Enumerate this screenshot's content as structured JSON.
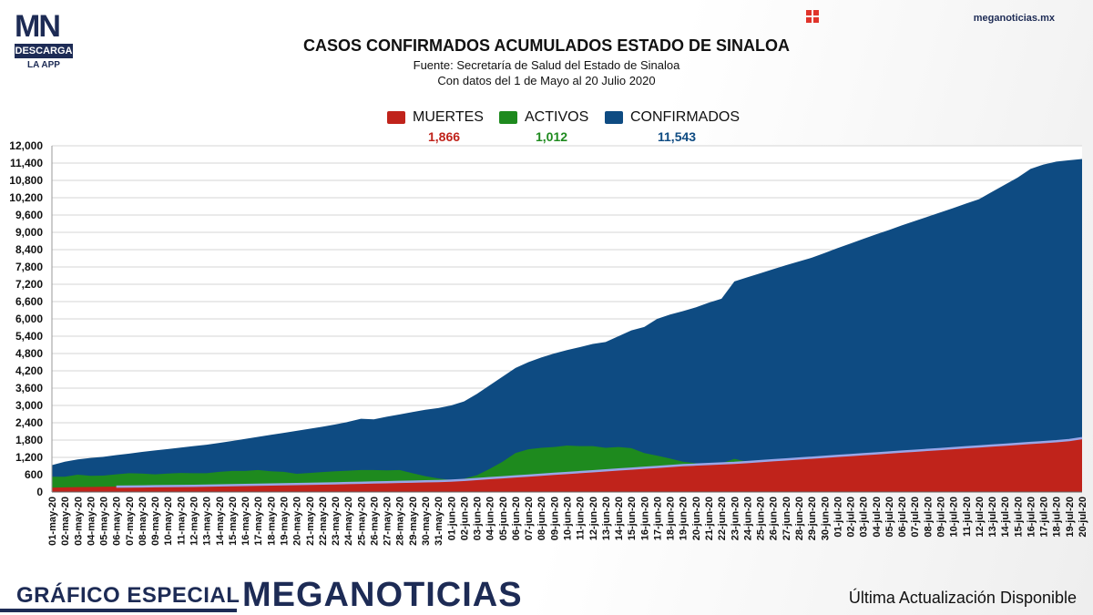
{
  "header": {
    "logo_text": "MN",
    "logo_bar": "DESCARGA",
    "logo_sub": "LA APP",
    "site": "meganoticias.mx",
    "title": "CASOS CONFIRMADOS ACUMULADOS ESTADO DE SINALOA",
    "source": "Fuente: Secretaría de Salud del Estado de Sinaloa",
    "range": "Con datos del 1 de Mayo al 20 Julio 2020"
  },
  "legend": {
    "muertes": {
      "label": "MUERTES",
      "value": "1,866",
      "color": "#c0231b"
    },
    "activos": {
      "label": "ACTIVOS",
      "value": "1,012",
      "color": "#1e8a1e"
    },
    "confirmados": {
      "label": "CONFIRMADOS",
      "value": "11,543",
      "color": "#0e4b82"
    }
  },
  "footer": {
    "left": "GRÁFICO ESPECIAL",
    "brand": "MEGANOTICIAS",
    "right": "Última Actualización Disponible"
  },
  "chart_data": {
    "type": "area",
    "title": "CASOS CONFIRMADOS ACUMULADOS ESTADO DE SINALOA",
    "ylim": [
      0,
      12000
    ],
    "yticks": [
      "0",
      "600",
      "1,200",
      "1,800",
      "2,400",
      "3,000",
      "3,600",
      "4,200",
      "4,800",
      "5,400",
      "6,000",
      "6,600",
      "7,200",
      "7,800",
      "8,400",
      "9,000",
      "9,600",
      "10,200",
      "10,800",
      "11,400",
      "12,000"
    ],
    "grid": true,
    "legend_position": "top-center",
    "x": [
      "01-may-20",
      "02-may-20",
      "03-may-20",
      "04-may-20",
      "05-may-20",
      "06-may-20",
      "07-may-20",
      "08-may-20",
      "09-may-20",
      "10-may-20",
      "11-may-20",
      "12-may-20",
      "13-may-20",
      "14-may-20",
      "15-may-20",
      "16-may-20",
      "17-may-20",
      "18-may-20",
      "19-may-20",
      "20-may-20",
      "21-may-20",
      "22-may-20",
      "23-may-20",
      "24-may-20",
      "25-may-20",
      "26-may-20",
      "27-may-20",
      "28-may-20",
      "29-may-20",
      "30-may-20",
      "31-may-20",
      "01-jun-20",
      "02-jun-20",
      "03-jun-20",
      "04-jun-20",
      "05-jun-20",
      "06-jun-20",
      "07-jun-20",
      "08-jun-20",
      "09-jun-20",
      "10-jun-20",
      "11-jun-20",
      "12-jun-20",
      "13-jun-20",
      "14-jun-20",
      "15-jun-20",
      "16-jun-20",
      "17-jun-20",
      "18-jun-20",
      "19-jun-20",
      "20-jun-20",
      "21-jun-20",
      "22-jun-20",
      "23-jun-20",
      "24-jun-20",
      "25-jun-20",
      "26-jun-20",
      "27-jun-20",
      "28-jun-20",
      "29-jun-20",
      "30-jun-20",
      "01-jul-20",
      "02-jul-20",
      "03-jul-20",
      "04-jul-20",
      "05-jul-20",
      "06-jul-20",
      "07-jul-20",
      "08-jul-20",
      "09-jul-20",
      "10-jul-20",
      "11-jul-20",
      "12-jul-20",
      "13-jul-20",
      "14-jul-20",
      "15-jul-20",
      "16-jul-20",
      "17-jul-20",
      "18-jul-20",
      "19-jul-20",
      "20-jul-20"
    ],
    "series": [
      {
        "name": "CONFIRMADOS",
        "color": "#0e4b82",
        "values": [
          930,
          1050,
          1130,
          1180,
          1220,
          1280,
          1330,
          1390,
          1440,
          1490,
          1540,
          1590,
          1640,
          1700,
          1770,
          1840,
          1910,
          1980,
          2050,
          2120,
          2190,
          2260,
          2340,
          2430,
          2540,
          2520,
          2610,
          2690,
          2770,
          2850,
          2910,
          3000,
          3140,
          3400,
          3700,
          4000,
          4300,
          4500,
          4660,
          4800,
          4920,
          5020,
          5130,
          5200,
          5400,
          5600,
          5720,
          6000,
          6150,
          6270,
          6400,
          6560,
          6700,
          7300,
          7440,
          7580,
          7720,
          7860,
          7990,
          8120,
          8280,
          8450,
          8610,
          8770,
          8930,
          9080,
          9240,
          9390,
          9540,
          9690,
          9840,
          10000,
          10150,
          10400,
          10650,
          10900,
          11200,
          11350,
          11450,
          11500,
          11543
        ]
      },
      {
        "name": "ACTIVOS",
        "color": "#1e8a1e",
        "values": [
          530,
          530,
          600,
          560,
          570,
          610,
          650,
          640,
          610,
          640,
          660,
          650,
          650,
          700,
          730,
          730,
          760,
          720,
          700,
          630,
          660,
          690,
          720,
          740,
          760,
          760,
          750,
          760,
          650,
          550,
          470,
          420,
          460,
          580,
          800,
          1050,
          1350,
          1480,
          1530,
          1560,
          1610,
          1590,
          1590,
          1530,
          1560,
          1520,
          1350,
          1260,
          1160,
          1050,
          1000,
          980,
          1000,
          1150,
          1050,
          1050,
          1050,
          1050,
          1050,
          1050,
          1050,
          1050,
          1050,
          1050,
          1050,
          1050,
          1050,
          1050,
          1050,
          1050,
          1050,
          1050,
          1050,
          1050,
          1050,
          1050,
          1050,
          1050,
          1050,
          1040,
          1012
        ]
      },
      {
        "name": "MUERTES",
        "color": "#c0231b",
        "values": [
          150,
          160,
          170,
          175,
          180,
          185,
          190,
          195,
          200,
          205,
          210,
          215,
          220,
          228,
          236,
          244,
          252,
          260,
          268,
          276,
          284,
          292,
          300,
          310,
          320,
          330,
          340,
          350,
          360,
          370,
          380,
          395,
          420,
          450,
          480,
          510,
          540,
          570,
          600,
          630,
          660,
          690,
          720,
          750,
          780,
          810,
          840,
          870,
          900,
          930,
          950,
          970,
          990,
          1010,
          1040,
          1070,
          1100,
          1130,
          1160,
          1190,
          1220,
          1250,
          1280,
          1310,
          1340,
          1370,
          1400,
          1430,
          1460,
          1490,
          1520,
          1550,
          1580,
          1610,
          1640,
          1670,
          1700,
          1730,
          1760,
          1800,
          1866
        ]
      }
    ]
  }
}
